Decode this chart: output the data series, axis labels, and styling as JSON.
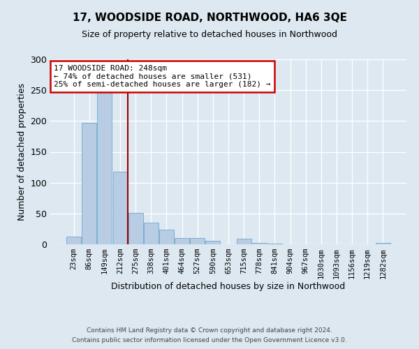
{
  "title": "17, WOODSIDE ROAD, NORTHWOOD, HA6 3QE",
  "subtitle": "Size of property relative to detached houses in Northwood",
  "xlabel": "Distribution of detached houses by size in Northwood",
  "ylabel": "Number of detached properties",
  "bar_labels": [
    "23sqm",
    "86sqm",
    "149sqm",
    "212sqm",
    "275sqm",
    "338sqm",
    "401sqm",
    "464sqm",
    "527sqm",
    "590sqm",
    "653sqm",
    "715sqm",
    "778sqm",
    "841sqm",
    "904sqm",
    "967sqm",
    "1030sqm",
    "1093sqm",
    "1156sqm",
    "1219sqm",
    "1282sqm"
  ],
  "bar_values": [
    12,
    197,
    251,
    118,
    51,
    35,
    24,
    10,
    10,
    6,
    0,
    9,
    2,
    1,
    0,
    0,
    0,
    0,
    0,
    0,
    2
  ],
  "bar_color": "#b8cce4",
  "bar_edge_color": "#7bafd4",
  "ylim": [
    0,
    300
  ],
  "yticks": [
    0,
    50,
    100,
    150,
    200,
    250,
    300
  ],
  "annotation_title": "17 WOODSIDE ROAD: 248sqm",
  "annotation_line1": "← 74% of detached houses are smaller (531)",
  "annotation_line2": "25% of semi-detached houses are larger (182) →",
  "annotation_box_color": "#ffffff",
  "annotation_box_edge_color": "#cc0000",
  "vline_color": "#990000",
  "vline_x": 3.5,
  "footer_line1": "Contains HM Land Registry data © Crown copyright and database right 2024.",
  "footer_line2": "Contains public sector information licensed under the Open Government Licence v3.0.",
  "background_color": "#dde8f0",
  "grid_color": "#ffffff"
}
